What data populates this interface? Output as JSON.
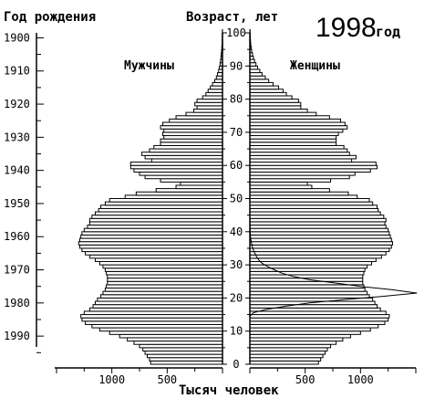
{
  "chart_data": {
    "type": "bar",
    "subtype": "population-pyramid",
    "title_year": "1998",
    "title_suffix": "год",
    "left_axis_label": "Год рождения",
    "center_axis_label": "Возраст, лет",
    "xlabel": "Тысяч человек",
    "men_label": "Мужчины",
    "women_label": "Женщины",
    "age_ticks": [
      "0",
      "10",
      "20",
      "30",
      "40",
      "50",
      "60",
      "70",
      "80",
      "90",
      "100"
    ],
    "birth_year_ticks": [
      "1900",
      "1910",
      "1920",
      "1930",
      "1940",
      "1950",
      "1960",
      "1970",
      "1980",
      "1990"
    ],
    "x_tick_labels_men": [
      "1000",
      "500"
    ],
    "x_tick_labels_women": [
      "500",
      "1000"
    ],
    "xlim": [
      0,
      1500
    ],
    "age_range": [
      0,
      100
    ],
    "survey_year": 1998,
    "ages": [
      0,
      1,
      2,
      3,
      4,
      5,
      6,
      7,
      8,
      9,
      10,
      11,
      12,
      13,
      14,
      15,
      16,
      17,
      18,
      19,
      20,
      21,
      22,
      23,
      24,
      25,
      26,
      27,
      28,
      29,
      30,
      31,
      32,
      33,
      34,
      35,
      36,
      37,
      38,
      39,
      40,
      41,
      42,
      43,
      44,
      45,
      46,
      47,
      48,
      49,
      50,
      51,
      52,
      53,
      54,
      55,
      56,
      57,
      58,
      59,
      60,
      61,
      62,
      63,
      64,
      65,
      66,
      67,
      68,
      69,
      70,
      71,
      72,
      73,
      74,
      75,
      76,
      77,
      78,
      79,
      80,
      81,
      82,
      83,
      84,
      85,
      86,
      87,
      88,
      89,
      90,
      91,
      92,
      93,
      94,
      95,
      96,
      97,
      98,
      99,
      100
    ],
    "series": [
      {
        "name": "Мужчины",
        "values": [
          650,
          660,
          680,
          700,
          720,
          750,
          800,
          860,
          930,
          1020,
          1110,
          1180,
          1240,
          1270,
          1280,
          1250,
          1200,
          1170,
          1150,
          1130,
          1100,
          1080,
          1060,
          1050,
          1040,
          1040,
          1040,
          1050,
          1060,
          1080,
          1110,
          1150,
          1200,
          1240,
          1270,
          1290,
          1300,
          1290,
          1280,
          1270,
          1250,
          1220,
          1200,
          1200,
          1180,
          1150,
          1120,
          1100,
          1060,
          1020,
          880,
          780,
          600,
          420,
          380,
          560,
          700,
          750,
          800,
          830,
          830,
          640,
          700,
          730,
          660,
          620,
          560,
          560,
          530,
          540,
          530,
          560,
          540,
          480,
          420,
          330,
          260,
          230,
          250,
          230,
          180,
          150,
          130,
          110,
          90,
          70,
          55,
          45,
          35,
          28,
          22,
          18,
          14,
          11,
          8,
          6,
          4,
          3,
          2,
          2,
          1
        ]
      },
      {
        "name": "Женщины",
        "values": [
          620,
          640,
          660,
          680,
          700,
          730,
          780,
          840,
          910,
          1000,
          1090,
          1160,
          1220,
          1250,
          1260,
          1230,
          1180,
          1150,
          1130,
          1110,
          1080,
          1060,
          1040,
          1030,
          1020,
          1020,
          1020,
          1030,
          1040,
          1060,
          1100,
          1140,
          1190,
          1230,
          1260,
          1280,
          1290,
          1280,
          1270,
          1260,
          1250,
          1230,
          1220,
          1230,
          1210,
          1180,
          1160,
          1150,
          1110,
          1080,
          970,
          890,
          720,
          560,
          520,
          730,
          900,
          950,
          1090,
          1150,
          1140,
          920,
          960,
          900,
          880,
          850,
          780,
          780,
          780,
          800,
          840,
          880,
          860,
          820,
          720,
          600,
          520,
          460,
          460,
          440,
          380,
          330,
          300,
          260,
          210,
          170,
          140,
          110,
          90,
          70,
          55,
          42,
          32,
          24,
          17,
          12,
          8,
          6,
          4,
          3,
          2
        ]
      }
    ],
    "fertility_curve": {
      "note_ages": [
        14,
        15,
        16,
        17,
        18,
        19,
        20,
        21,
        22,
        23,
        24,
        25,
        26,
        27,
        28,
        29,
        30,
        31,
        32,
        33,
        34,
        35,
        36,
        37,
        38,
        39,
        40,
        41,
        42,
        43,
        44
      ],
      "values": [
        0,
        30,
        140,
        320,
        540,
        850,
        1200,
        1510,
        1280,
        1000,
        780,
        540,
        390,
        290,
        220,
        160,
        110,
        80,
        60,
        45,
        32,
        22,
        15,
        10,
        6,
        4,
        3,
        2,
        1,
        1,
        0
      ]
    }
  }
}
